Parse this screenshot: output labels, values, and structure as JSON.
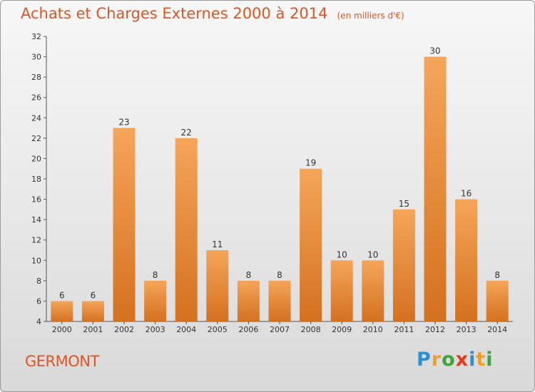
{
  "title": "Achats et Charges Externes 2000 à 2014",
  "unit": "(en milliers d'€)",
  "commune": "GERMONT",
  "logo": {
    "letters": [
      "P",
      "r",
      "o",
      "x",
      "i",
      "t",
      "i"
    ],
    "colors": [
      "#2a8fd6",
      "#f0a020",
      "#3aa63a",
      "#e53a1a",
      "#2a8fd6",
      "#f0a020",
      "#3aa63a"
    ]
  },
  "colors": {
    "accent": "#e0541f",
    "bar_top": "#f5a55a",
    "bar_bottom": "#d4711f"
  },
  "chart_data": {
    "type": "bar",
    "categories": [
      "2000",
      "2001",
      "2002",
      "2003",
      "2004",
      "2005",
      "2006",
      "2007",
      "2008",
      "2009",
      "2010",
      "2011",
      "2012",
      "2013",
      "2014"
    ],
    "values": [
      6,
      6,
      23,
      8,
      22,
      11,
      8,
      8,
      19,
      10,
      10,
      15,
      30,
      16,
      8
    ],
    "ylim": [
      4,
      32
    ],
    "yticks": [
      4,
      6,
      8,
      10,
      12,
      14,
      16,
      18,
      20,
      22,
      24,
      26,
      28,
      30,
      32
    ],
    "xlabel": "",
    "ylabel": "",
    "grid": false,
    "data_labels": true
  }
}
